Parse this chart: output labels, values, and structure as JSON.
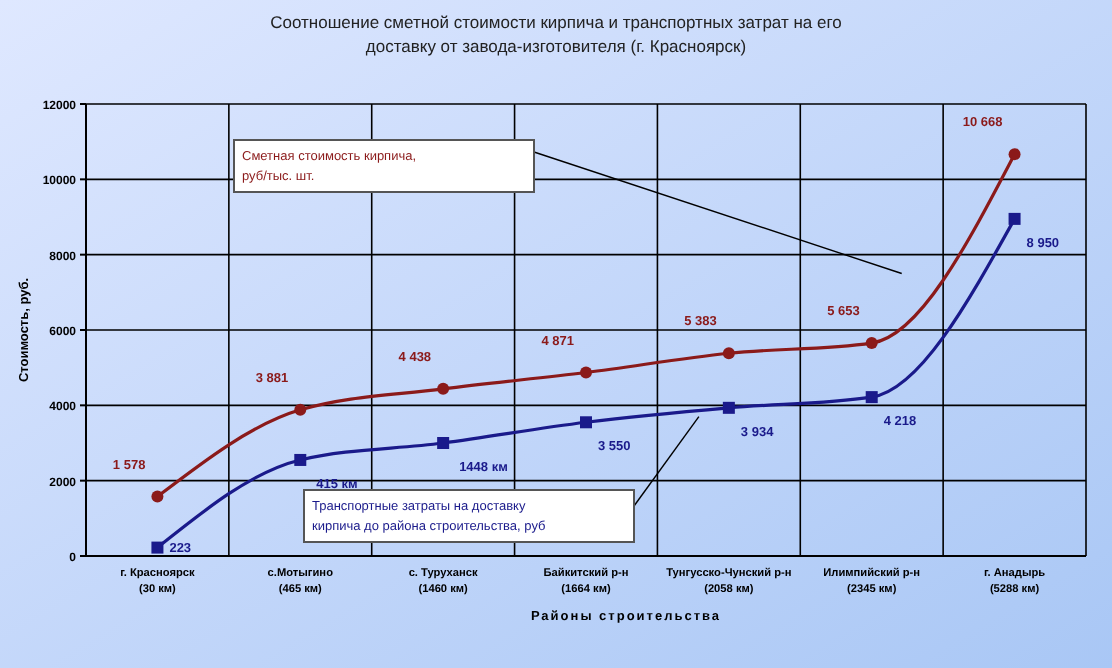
{
  "chart_data": {
    "type": "line",
    "title": "Соотношение сметной стоимости кирпича и транспортных затрат на его\nдоставку от завода-изготовителя (г. Красноярск)",
    "xlabel": "Районы строительства",
    "ylabel": "Стоимость, руб.",
    "categories": [
      "г. Красноярск\n(30 км)",
      "с.Мотыгино\n(465 км)",
      "с. Туруханск\n(1460 км)",
      "Байкитский р-н\n(1664 км)",
      "Тунгусско-Чунский р-н\n(2058 км)",
      "Илимпийский р-н\n(2345 км)",
      "г. Анадырь\n(5288 км)"
    ],
    "series": [
      {
        "name": "Сметная стоимость кирпича, руб/тыс. шт.",
        "color": "#8b1a1a",
        "marker": "circle",
        "values": [
          1578,
          3881,
          4438,
          4871,
          5383,
          5653,
          10668
        ],
        "value_labels": [
          "1 578",
          "3 881",
          "4 438",
          "4 871",
          "5 383",
          "5 653",
          "10 668"
        ]
      },
      {
        "name": "Транспортные затраты на доставку кирпича до района строительства, руб",
        "color": "#1a1a8b",
        "marker": "square",
        "values": [
          223,
          2550,
          3000,
          3550,
          3934,
          4218,
          8950
        ],
        "value_labels": [
          "223",
          null,
          null,
          "3 550",
          "3 934",
          "4 218",
          "8 950"
        ]
      }
    ],
    "annotations": [
      {
        "text": "415 км",
        "x": "с.Мотыгино\n(465 км)",
        "y": 2550
      },
      {
        "text": "1448 км",
        "x": "с. Туруханск\n(1460 км)",
        "y": 3000
      }
    ],
    "ylim": [
      0,
      12000
    ],
    "yticks": [
      0,
      2000,
      4000,
      6000,
      8000,
      10000,
      12000
    ],
    "grid": true,
    "legend": false
  }
}
